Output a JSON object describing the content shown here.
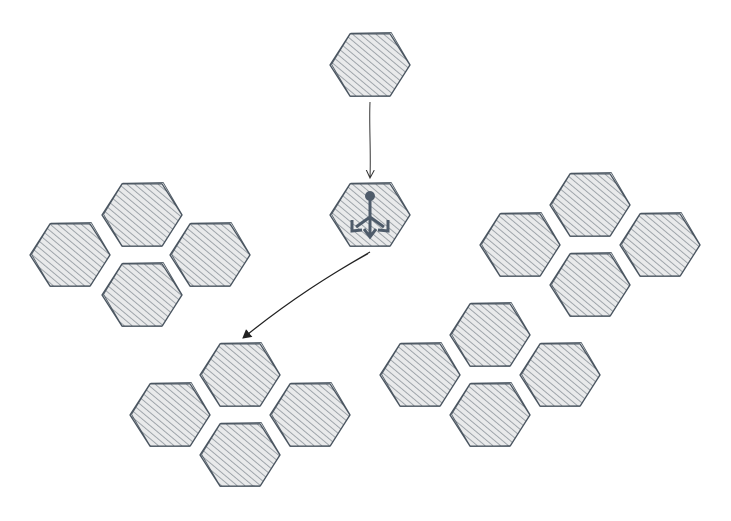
{
  "diagram": {
    "colors": {
      "background": "#ffffff",
      "hex_stroke": "#4a5560",
      "hex_fill_hatch": "#9aa0a6",
      "hex_fill_base": "#e6e7e8",
      "arrow": "#222222",
      "icon": "#4e5b6a"
    },
    "nodes": [
      {
        "id": "source",
        "icon": "none",
        "interactable": true
      },
      {
        "id": "load-balancer",
        "icon": "load-balancer-icon",
        "interactable": true
      }
    ],
    "clusters": [
      {
        "id": "left-cluster",
        "count": 4
      },
      {
        "id": "bottom-center-cluster",
        "count": 4
      },
      {
        "id": "right-upper-cluster",
        "count": 4
      },
      {
        "id": "right-lower-cluster",
        "count": 4
      }
    ],
    "edges": [
      {
        "from": "source",
        "to": "load-balancer"
      },
      {
        "from": "load-balancer",
        "to": "bottom-center-cluster"
      }
    ]
  }
}
